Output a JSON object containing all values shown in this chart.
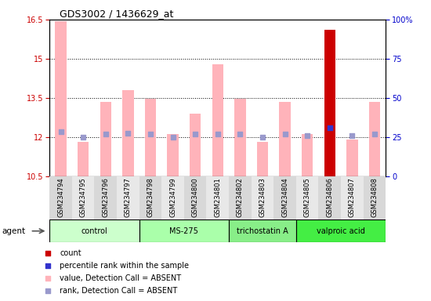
{
  "title": "GDS3002 / 1436629_at",
  "samples": [
    "GSM234794",
    "GSM234795",
    "GSM234796",
    "GSM234797",
    "GSM234798",
    "GSM234799",
    "GSM234800",
    "GSM234801",
    "GSM234802",
    "GSM234803",
    "GSM234804",
    "GSM234805",
    "GSM234806",
    "GSM234807",
    "GSM234808"
  ],
  "values": [
    16.45,
    11.82,
    13.35,
    13.8,
    13.45,
    12.1,
    12.9,
    14.8,
    13.45,
    11.82,
    13.35,
    12.1,
    16.1,
    11.9,
    13.35
  ],
  "ranks": [
    12.2,
    12.0,
    12.1,
    12.15,
    12.1,
    12.0,
    12.1,
    12.1,
    12.1,
    12.0,
    12.1,
    12.05,
    12.35,
    12.05,
    12.1
  ],
  "is_red": [
    false,
    false,
    false,
    false,
    false,
    false,
    false,
    false,
    false,
    false,
    false,
    false,
    true,
    false,
    false
  ],
  "bar_color_pink": "#FFB3BA",
  "bar_color_red": "#CC0000",
  "dot_color_blue": "#3333CC",
  "dot_color_lightblue": "#9999CC",
  "ylim_left": [
    10.5,
    16.5
  ],
  "ylim_right": [
    0,
    100
  ],
  "yticks_left": [
    10.5,
    12.0,
    13.5,
    15.0,
    16.5
  ],
  "yticks_right": [
    0,
    25,
    50,
    75,
    100
  ],
  "ytick_labels_left": [
    "10.5",
    "12",
    "13.5",
    "15",
    "16.5"
  ],
  "ytick_labels_right": [
    "0",
    "25",
    "50",
    "75",
    "100%"
  ],
  "groups": [
    {
      "label": "control",
      "start": 0,
      "end": 3,
      "color": "#CCFFCC"
    },
    {
      "label": "MS-275",
      "start": 4,
      "end": 7,
      "color": "#AAFFAA"
    },
    {
      "label": "trichostatin A",
      "start": 8,
      "end": 10,
      "color": "#88EE88"
    },
    {
      "label": "valproic acid",
      "start": 11,
      "end": 14,
      "color": "#44EE44"
    }
  ],
  "agent_label": "agent",
  "left_axis_color": "#CC0000",
  "right_axis_color": "#0000CC",
  "bar_width": 0.5,
  "dot_size": 20,
  "legend_items": [
    {
      "color": "#CC0000",
      "label": "count"
    },
    {
      "color": "#3333CC",
      "label": "percentile rank within the sample"
    },
    {
      "color": "#FFB3BA",
      "label": "value, Detection Call = ABSENT"
    },
    {
      "color": "#9999CC",
      "label": "rank, Detection Call = ABSENT"
    }
  ]
}
